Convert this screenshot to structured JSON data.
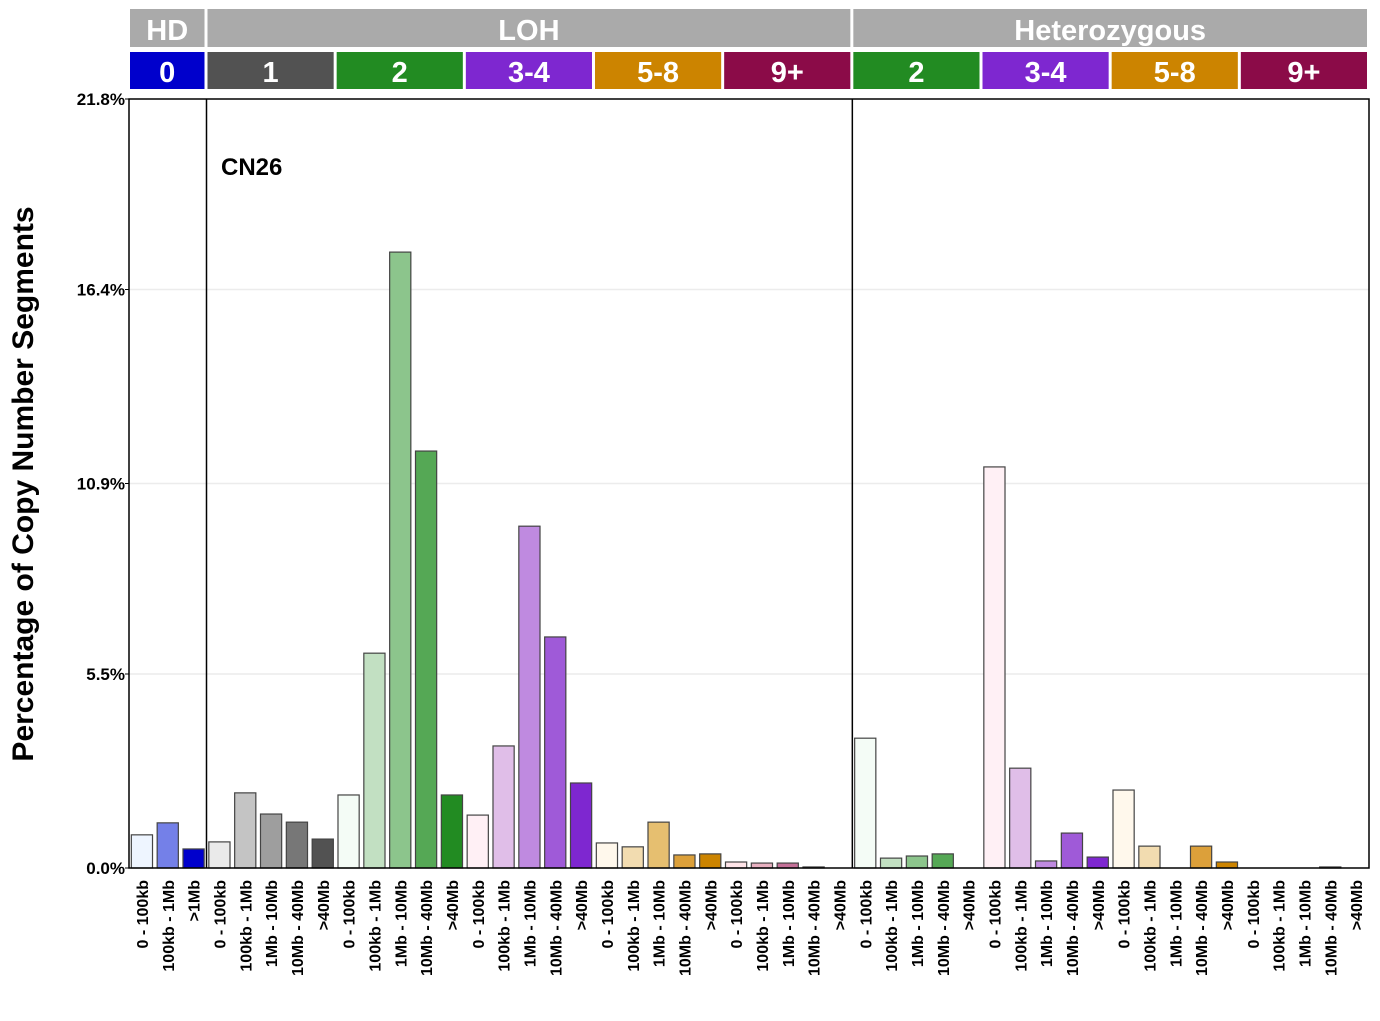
{
  "chart_data": {
    "type": "bar",
    "ylabel": "Percentage of Copy Number Segments",
    "annotation": "CN26",
    "ylim": [
      0,
      21.8
    ],
    "yticks": [
      "0.0%",
      "5.5%",
      "10.9%",
      "16.4%",
      "21.8%"
    ],
    "ytick_values": [
      0,
      5.5,
      10.9,
      16.4,
      21.8
    ],
    "grid": true,
    "top_groups": [
      {
        "label": "HD",
        "count": 3
      },
      {
        "label": "LOH",
        "count": 25
      },
      {
        "label": "Heterozygous",
        "count": 20
      }
    ],
    "sub_groups": [
      {
        "label": "0",
        "color": "#0000cc",
        "sizes": [
          "0 - 100kb",
          "100kb - 1Mb",
          ">1Mb"
        ],
        "shades": [
          "#eef5ff",
          "#7480e8",
          "#0000cc"
        ],
        "values": [
          0.94,
          1.28,
          0.54
        ]
      },
      {
        "label": "1",
        "color": "#525252",
        "sizes": [
          "0 - 100kb",
          "100kb - 1Mb",
          "1Mb - 10Mb",
          "10Mb - 40Mb",
          ">40Mb"
        ],
        "shades": [
          "#eaeaea",
          "#c4c4c4",
          "#9e9e9e",
          "#777777",
          "#525252"
        ],
        "values": [
          0.74,
          2.13,
          1.53,
          1.3,
          0.82
        ]
      },
      {
        "label": "2",
        "color": "#228b22",
        "sizes": [
          "0 - 100kb",
          "100kb - 1Mb",
          "1Mb - 10Mb",
          "10Mb - 40Mb",
          ">40Mb"
        ],
        "shades": [
          "#f4fcf6",
          "#c2e0c2",
          "#8cc58c",
          "#55a855",
          "#228b22"
        ],
        "values": [
          2.07,
          6.09,
          17.46,
          11.82,
          2.07
        ]
      },
      {
        "label": "3-4",
        "color": "#7e27d0",
        "sizes": [
          "0 - 100kb",
          "100kb - 1Mb",
          "1Mb - 10Mb",
          "10Mb - 40Mb",
          ">40Mb"
        ],
        "shades": [
          "#fff0f5",
          "#e0bee8",
          "#bf8ae0",
          "#9f5ad8",
          "#7e27d0"
        ],
        "values": [
          1.5,
          3.46,
          9.69,
          6.55,
          2.41
        ]
      },
      {
        "label": "5-8",
        "color": "#cc8400",
        "sizes": [
          "0 - 100kb",
          "100kb - 1Mb",
          "1Mb - 10Mb",
          "10Mb - 40Mb",
          ">40Mb"
        ],
        "shades": [
          "#fff8ec",
          "#f2dcb0",
          "#e6bf70",
          "#dca03a",
          "#cc8400"
        ],
        "values": [
          0.71,
          0.6,
          1.3,
          0.37,
          0.4
        ]
      },
      {
        "label": "9+",
        "color": "#8b0b48",
        "sizes": [
          "0 - 100kb",
          "100kb - 1Mb",
          "1Mb - 10Mb",
          "10Mb - 40Mb",
          ">40Mb"
        ],
        "shades": [
          "#ffe4e8",
          "#e8b0c0",
          "#c47098",
          "#a03070",
          "#8b0b48"
        ],
        "values": [
          0.17,
          0.14,
          0.14,
          0.03,
          0
        ]
      },
      {
        "label": "2",
        "color": "#228b22",
        "sizes": [
          "0 - 100kb",
          "100kb - 1Mb",
          "1Mb - 10Mb",
          "10Mb - 40Mb",
          ">40Mb"
        ],
        "shades": [
          "#f4fcf6",
          "#c2e0c2",
          "#8cc58c",
          "#55a855",
          "#228b22"
        ],
        "values": [
          3.68,
          0.28,
          0.34,
          0.4,
          0
        ]
      },
      {
        "label": "3-4",
        "color": "#7e27d0",
        "sizes": [
          "0 - 100kb",
          "100kb - 1Mb",
          "1Mb - 10Mb",
          "10Mb - 40Mb",
          ">40Mb"
        ],
        "shades": [
          "#fff0f5",
          "#e0bee8",
          "#bf8ae0",
          "#9f5ad8",
          "#7e27d0"
        ],
        "values": [
          11.37,
          2.83,
          0.2,
          0.99,
          0.31
        ]
      },
      {
        "label": "5-8",
        "color": "#cc8400",
        "sizes": [
          "0 - 100kb",
          "100kb - 1Mb",
          "1Mb - 10Mb",
          "10Mb - 40Mb",
          ">40Mb"
        ],
        "shades": [
          "#fff8ec",
          "#f2dcb0",
          "#e6bf70",
          "#dca03a",
          "#cc8400"
        ],
        "values": [
          2.21,
          0.62,
          0,
          0.62,
          0.17
        ]
      },
      {
        "label": "9+",
        "color": "#8b0b48",
        "sizes": [
          "0 - 100kb",
          "100kb - 1Mb",
          "1Mb - 10Mb",
          "10Mb - 40Mb",
          ">40Mb"
        ],
        "shades": [
          "#ffe4e8",
          "#e8b0c0",
          "#c47098",
          "#a03070",
          "#8b0b48"
        ],
        "values": [
          0,
          0,
          0,
          0.03,
          0
        ]
      }
    ],
    "header_color": "#aaaaaa"
  }
}
